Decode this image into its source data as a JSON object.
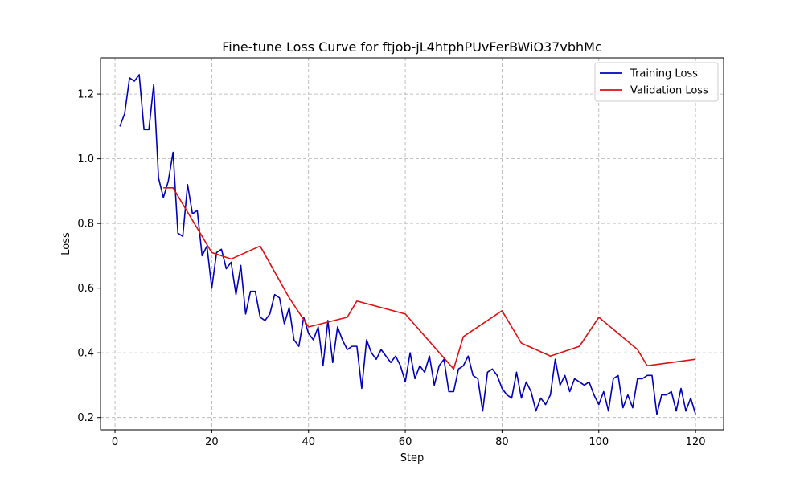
{
  "chart_data": {
    "type": "line",
    "title": "Fine-tune Loss Curve for ftjob-jL4htphPUvFerBWiO37vbhMc",
    "xlabel": "Step",
    "ylabel": "Loss",
    "xlim": [
      -3.0,
      125.8
    ],
    "ylim": [
      0.162,
      1.312
    ],
    "xticks": [
      0,
      20,
      40,
      60,
      80,
      100,
      120
    ],
    "yticks": [
      0.2,
      0.4,
      0.6,
      0.8,
      1.0,
      1.2
    ],
    "xtick_labels": [
      "0",
      "20",
      "40",
      "60",
      "80",
      "100",
      "120"
    ],
    "ytick_labels": [
      "0.2",
      "0.4",
      "0.6",
      "0.8",
      "1.0",
      "1.2"
    ],
    "grid": true,
    "legend_position": "top-right",
    "series": [
      {
        "name": "Training Loss",
        "color": "#0000bb",
        "x": [
          1,
          2,
          3,
          4,
          5,
          6,
          7,
          8,
          9,
          10,
          11,
          12,
          13,
          14,
          15,
          16,
          17,
          18,
          19,
          20,
          21,
          22,
          23,
          24,
          25,
          26,
          27,
          28,
          29,
          30,
          31,
          32,
          33,
          34,
          35,
          36,
          37,
          38,
          39,
          40,
          41,
          42,
          43,
          44,
          45,
          46,
          47,
          48,
          49,
          50,
          51,
          52,
          53,
          54,
          55,
          56,
          57,
          58,
          59,
          60,
          61,
          62,
          63,
          64,
          65,
          66,
          67,
          68,
          69,
          70,
          71,
          72,
          73,
          74,
          75,
          76,
          77,
          78,
          79,
          80,
          81,
          82,
          83,
          84,
          85,
          86,
          87,
          88,
          89,
          90,
          91,
          92,
          93,
          94,
          95,
          96,
          97,
          98,
          99,
          100,
          101,
          102,
          103,
          104,
          105,
          106,
          107,
          108,
          109,
          110,
          111,
          112,
          113,
          114,
          115,
          116,
          117,
          118,
          119,
          120
        ],
        "values": [
          1.1,
          1.14,
          1.25,
          1.24,
          1.26,
          1.09,
          1.09,
          1.23,
          0.94,
          0.88,
          0.93,
          1.02,
          0.77,
          0.76,
          0.92,
          0.83,
          0.84,
          0.7,
          0.73,
          0.6,
          0.71,
          0.72,
          0.66,
          0.68,
          0.58,
          0.67,
          0.52,
          0.59,
          0.59,
          0.51,
          0.5,
          0.52,
          0.58,
          0.57,
          0.49,
          0.54,
          0.44,
          0.42,
          0.51,
          0.46,
          0.44,
          0.48,
          0.36,
          0.5,
          0.37,
          0.48,
          0.44,
          0.41,
          0.42,
          0.42,
          0.29,
          0.44,
          0.4,
          0.38,
          0.41,
          0.39,
          0.37,
          0.39,
          0.36,
          0.31,
          0.4,
          0.32,
          0.36,
          0.34,
          0.39,
          0.3,
          0.36,
          0.38,
          0.28,
          0.28,
          0.35,
          0.36,
          0.39,
          0.33,
          0.32,
          0.22,
          0.34,
          0.35,
          0.33,
          0.29,
          0.27,
          0.26,
          0.34,
          0.26,
          0.31,
          0.28,
          0.22,
          0.26,
          0.24,
          0.27,
          0.38,
          0.3,
          0.33,
          0.28,
          0.32,
          0.31,
          0.3,
          0.31,
          0.27,
          0.24,
          0.28,
          0.22,
          0.32,
          0.33,
          0.23,
          0.27,
          0.23,
          0.32,
          0.32,
          0.33,
          0.33,
          0.21,
          0.27,
          0.27,
          0.28,
          0.22,
          0.29,
          0.22,
          0.26,
          0.21
        ]
      },
      {
        "name": "Validation Loss",
        "color": "#dd1111",
        "x": [
          10,
          12,
          20,
          24,
          30,
          36,
          40,
          48,
          50,
          60,
          70,
          72,
          80,
          84,
          90,
          96,
          100,
          108,
          110,
          120
        ],
        "values": [
          0.91,
          0.91,
          0.71,
          0.69,
          0.73,
          0.57,
          0.48,
          0.51,
          0.56,
          0.52,
          0.35,
          0.45,
          0.53,
          0.43,
          0.39,
          0.42,
          0.51,
          0.41,
          0.36,
          0.38
        ]
      }
    ]
  }
}
